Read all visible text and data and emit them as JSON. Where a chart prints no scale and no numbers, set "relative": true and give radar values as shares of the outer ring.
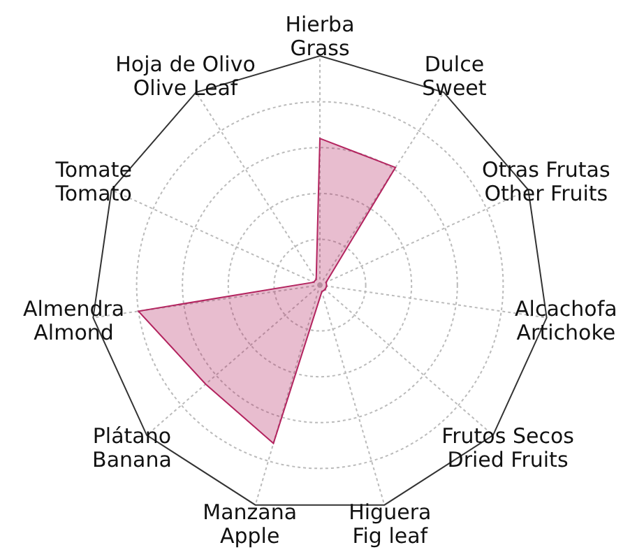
{
  "chart_data": {
    "type": "radar",
    "categories": [
      "Hierba\nGrass",
      "Dulce\nSweet",
      "Otras Frutas\nOther Fruits",
      "Alcachofa\nArtichoke",
      "Frutos Secos\nDried Fruits",
      "Higuera\nFig leaf",
      "Manzana\nApple",
      "Plátano\nBanana",
      "Almendra\nAlmond",
      "Tomate\nTomato",
      "Hoja de Olivo\nOlive Leaf"
    ],
    "series": [
      {
        "color": "#b3245f",
        "values": [
          0.64,
          0.61,
          0.03,
          0.03,
          0.03,
          0.03,
          0.72,
          0.66,
          0.8,
          0.03,
          0.03
        ]
      }
    ],
    "relative": true,
    "grid": true
  }
}
